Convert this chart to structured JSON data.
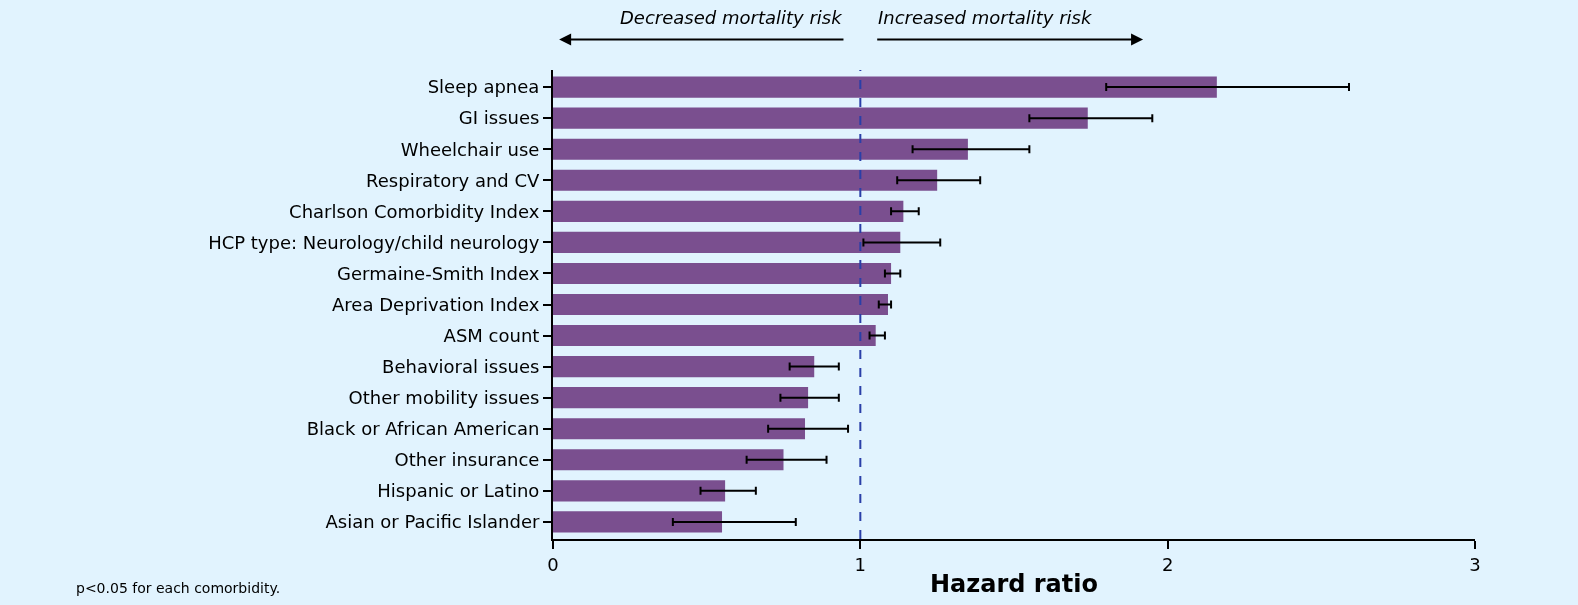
{
  "chart_data": {
    "type": "bar",
    "orientation": "horizontal",
    "xlabel": "Hazard ratio",
    "categories": [
      "Sleep apnea",
      "GI issues",
      "Wheelchair use",
      "Respiratory and CV",
      "Charlson Comorbidity Index",
      "HCP type: Neurology/child neurology",
      "Germaine-Smith Index",
      "Area Deprivation Index",
      "ASM count",
      "Behavioral issues",
      "Other mobility issues",
      "Black or African American",
      "Other insurance",
      "Hispanic or Latino",
      "Asian or Pacific Islander"
    ],
    "values": [
      2.16,
      1.74,
      1.35,
      1.25,
      1.14,
      1.13,
      1.1,
      1.09,
      1.05,
      0.85,
      0.83,
      0.82,
      0.75,
      0.56,
      0.55
    ],
    "errors": [
      [
        1.8,
        2.59
      ],
      [
        1.55,
        1.95
      ],
      [
        1.17,
        1.55
      ],
      [
        1.12,
        1.39
      ],
      [
        1.1,
        1.19
      ],
      [
        1.01,
        1.26
      ],
      [
        1.08,
        1.13
      ],
      [
        1.06,
        1.1
      ],
      [
        1.03,
        1.08
      ],
      [
        0.77,
        0.93
      ],
      [
        0.74,
        0.93
      ],
      [
        0.7,
        0.96
      ],
      [
        0.63,
        0.89
      ],
      [
        0.48,
        0.66
      ],
      [
        0.39,
        0.79
      ]
    ],
    "color": "#7a4f8f",
    "xlim": [
      0,
      3
    ],
    "xticks": [
      0,
      1,
      2,
      3
    ],
    "grid": false,
    "ref_lines": [
      {
        "axis": "x",
        "value": 1,
        "color": "#2a3fa8",
        "line_style": "dashed"
      }
    ],
    "annotations": [
      "Decreased mortality risk",
      "Increased mortality risk",
      "p<0.05 for each comorbidity."
    ]
  }
}
